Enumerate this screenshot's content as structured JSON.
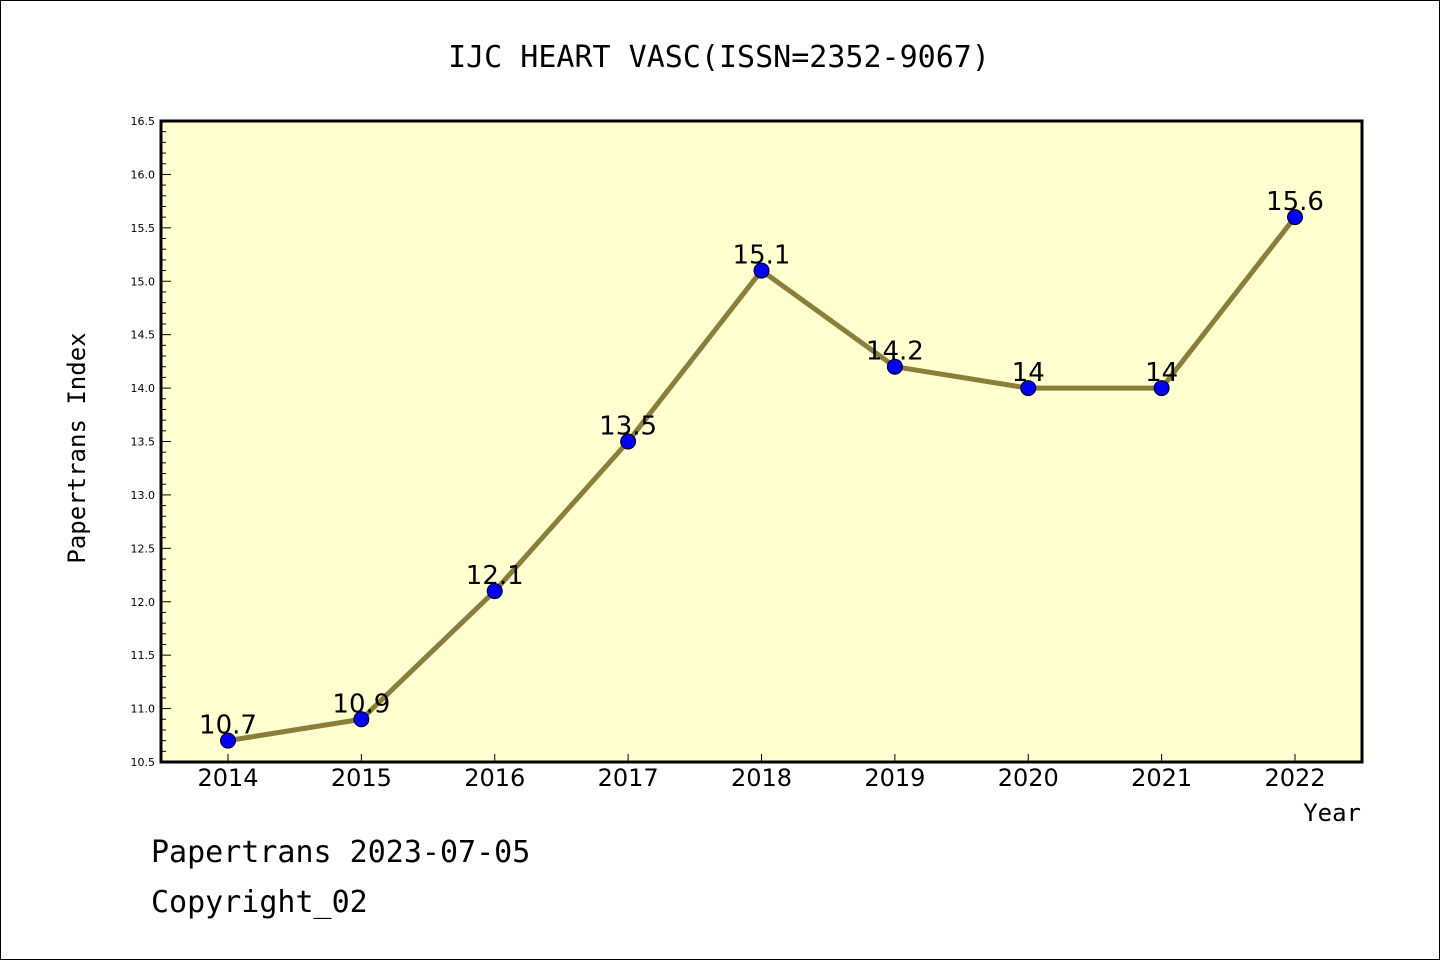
{
  "chart_data": {
    "type": "line",
    "title": "IJC HEART VASC(ISSN=2352-9067)",
    "xlabel": "Year",
    "ylabel": "Papertrans Index",
    "categories": [
      "2014",
      "2015",
      "2016",
      "2017",
      "2018",
      "2019",
      "2020",
      "2021",
      "2022"
    ],
    "series": [
      {
        "values": [
          10.7,
          10.9,
          12.1,
          13.5,
          15.1,
          14.2,
          14,
          14,
          15.6
        ],
        "labels": [
          "10.7",
          "10.9",
          "12.1",
          "13.5",
          "15.1",
          "14.2",
          "14",
          "14",
          "15.6"
        ],
        "line_color": "#8b7d3a",
        "marker_color": "#0000ff"
      }
    ],
    "ylim": [
      10.5,
      16.5
    ],
    "yticks": [
      "10.5",
      "11.0",
      "11.5",
      "12.0",
      "12.5",
      "13.0",
      "13.5",
      "14.0",
      "14.5",
      "15.0",
      "15.5",
      "16.0",
      "16.5"
    ],
    "plot_background": "#ffffd0",
    "grid": false
  },
  "footer": {
    "line1": "Papertrans 2023-07-05",
    "line2": "Copyright_02"
  }
}
